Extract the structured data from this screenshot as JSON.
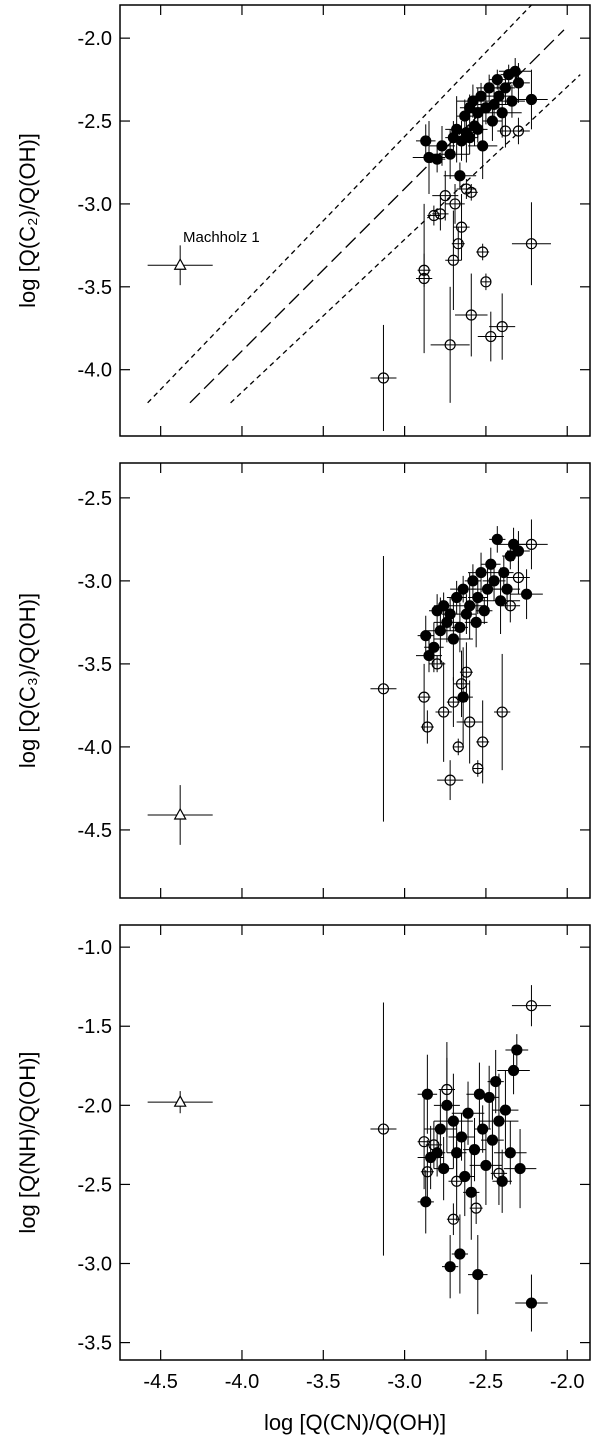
{
  "chart_data": [
    {
      "type": "scatter",
      "y_label": "log [Q(C₂)/Q(OH)]",
      "annotation": "Machholz 1",
      "xlim": [
        -4.75,
        -1.86
      ],
      "ylim": [
        -4.4,
        -1.8
      ],
      "xticks": [
        -4.5,
        -4,
        -3.5,
        -3,
        -2.5,
        -2
      ],
      "show_xtick_labels": false,
      "yticks": [
        {
          "value": -2,
          "label": "-2.0"
        },
        -2.5,
        {
          "value": -3,
          "label": "-3.0"
        },
        -3.5,
        {
          "value": -4,
          "label": "-4.0"
        }
      ],
      "reference_lines": [
        {
          "style": "short",
          "x": [
            -4.58,
            -2.22
          ],
          "values": [
            -4.2,
            -1.8
          ]
        },
        {
          "style": "long",
          "x": [
            -4.32,
            -2.02
          ],
          "values": [
            -4.2,
            -1.95
          ]
        },
        {
          "style": "short",
          "x": [
            -4.07,
            -1.92
          ],
          "values": [
            -4.2,
            -2.22
          ]
        }
      ],
      "series": [
        {
          "marker": "filled",
          "color": "#000000",
          "x": [
            -2.87,
            -2.85,
            -2.8,
            -2.77,
            -2.72,
            -2.7,
            -2.68,
            -2.66,
            -2.65,
            -2.63,
            -2.62,
            -2.6,
            -2.58,
            -2.57,
            -2.55,
            -2.53,
            -2.52,
            -2.5,
            -2.48,
            -2.46,
            -2.45,
            -2.43,
            -2.42,
            -2.4,
            -2.38,
            -2.36,
            -2.34,
            -2.32,
            -2.3,
            -2.22,
            -2.6,
            -2.55
          ],
          "values": [
            -2.62,
            -2.72,
            -2.73,
            -2.65,
            -2.7,
            -2.6,
            -2.55,
            -2.83,
            -2.62,
            -2.47,
            -2.57,
            -2.42,
            -2.38,
            -2.53,
            -2.45,
            -2.35,
            -2.65,
            -2.42,
            -2.3,
            -2.5,
            -2.4,
            -2.25,
            -2.35,
            -2.45,
            -2.3,
            -2.22,
            -2.38,
            -2.2,
            -2.27,
            -2.37,
            -2.6,
            -2.55
          ],
          "xerr": [
            0.06,
            0.1,
            0.05,
            0.08,
            0.12,
            0.05,
            0.07,
            0.1,
            0.06,
            0.05,
            0.08,
            0.06,
            0.1,
            0.05,
            0.07,
            0.06,
            0.09,
            0.05,
            0.08,
            0.06,
            0.1,
            0.05,
            0.07,
            0.12,
            0.06,
            0.05,
            0.08,
            0.1,
            0.07,
            0.1,
            0.05,
            0.06
          ],
          "yerr": [
            0.1,
            0.22,
            0.08,
            0.12,
            0.15,
            0.1,
            0.2,
            0.08,
            0.12,
            0.1,
            0.18,
            0.08,
            0.1,
            0.12,
            0.15,
            0.08,
            0.2,
            0.1,
            0.08,
            0.12,
            0.1,
            0.06,
            0.12,
            0.15,
            0.1,
            0.06,
            0.1,
            0.08,
            0.12,
            0.18,
            0.1,
            0.08
          ]
        },
        {
          "marker": "open",
          "color": "#000000",
          "x": [
            -2.88,
            -2.88,
            -2.82,
            -2.78,
            -2.75,
            -2.72,
            -2.7,
            -2.69,
            -2.67,
            -2.65,
            -2.62,
            -2.59,
            -2.59,
            -2.52,
            -2.5,
            -2.47,
            -2.4,
            -2.38,
            -2.3,
            -2.22,
            -3.13
          ],
          "values": [
            -3.4,
            -3.45,
            -3.07,
            -3.06,
            -2.95,
            -3.85,
            -3.34,
            -3,
            -3.24,
            -3.14,
            -2.91,
            -2.93,
            -3.67,
            -3.29,
            -3.47,
            -3.8,
            -3.74,
            -2.56,
            -2.56,
            -3.24,
            -4.05
          ],
          "xerr": [
            0.04,
            0.05,
            0.04,
            0.05,
            0.08,
            0.12,
            0.05,
            0.06,
            0.04,
            0.05,
            0.06,
            0.04,
            0.1,
            0.04,
            0.03,
            0.08,
            0.08,
            0.05,
            0.07,
            0.12,
            0.08
          ],
          "yerr": [
            0.1,
            0.45,
            0.06,
            0.1,
            0.15,
            0.35,
            0.3,
            0.12,
            0.1,
            0.2,
            0.06,
            0.05,
            0.25,
            0.05,
            0.05,
            0.15,
            0.2,
            0.1,
            0.08,
            0.25,
            0.32
          ]
        },
        {
          "marker": "triangle",
          "color": "#000000",
          "x": [
            -4.38
          ],
          "values": [
            -3.37
          ],
          "xerr": [
            0.2
          ],
          "yerr": [
            0.12
          ]
        }
      ]
    },
    {
      "type": "scatter",
      "y_label": "log [Q(C₃)/Q(OH)]",
      "xlim": [
        -4.75,
        -1.86
      ],
      "ylim": [
        -4.91,
        -2.29
      ],
      "xticks": [
        -4.5,
        -4,
        -3.5,
        -3,
        -2.5,
        -2
      ],
      "show_xtick_labels": false,
      "yticks": [
        -2.5,
        {
          "value": -3,
          "label": "-3.0"
        },
        -3.5,
        {
          "value": -4,
          "label": "-4.0"
        },
        -4.5
      ],
      "series": [
        {
          "marker": "filled",
          "color": "#000000",
          "x": [
            -2.87,
            -2.85,
            -2.82,
            -2.8,
            -2.78,
            -2.76,
            -2.74,
            -2.72,
            -2.7,
            -2.68,
            -2.66,
            -2.64,
            -2.62,
            -2.6,
            -2.58,
            -2.56,
            -2.55,
            -2.53,
            -2.51,
            -2.49,
            -2.47,
            -2.45,
            -2.43,
            -2.41,
            -2.39,
            -2.37,
            -2.35,
            -2.33,
            -2.3,
            -2.25,
            -2.64
          ],
          "values": [
            -3.33,
            -3.45,
            -3.4,
            -3.18,
            -3.3,
            -3.15,
            -3.25,
            -3.2,
            -3.35,
            -3.1,
            -3.28,
            -3.05,
            -3.2,
            -3.15,
            -3,
            -3.25,
            -3.1,
            -2.95,
            -3.18,
            -3.05,
            -2.9,
            -3,
            -2.75,
            -3.12,
            -2.95,
            -3.05,
            -2.85,
            -2.78,
            -2.82,
            -3.08,
            -3.7
          ],
          "xerr": [
            0.05,
            0.08,
            0.06,
            0.05,
            0.1,
            0.06,
            0.08,
            0.05,
            0.12,
            0.06,
            0.05,
            0.08,
            0.06,
            0.1,
            0.05,
            0.07,
            0.06,
            0.08,
            0.05,
            0.1,
            0.06,
            0.07,
            0.05,
            0.12,
            0.06,
            0.08,
            0.05,
            0.1,
            0.07,
            0.1,
            0.06
          ],
          "yerr": [
            0.12,
            0.1,
            0.15,
            0.1,
            0.2,
            0.08,
            0.12,
            0.1,
            0.25,
            0.1,
            0.15,
            0.08,
            0.12,
            0.2,
            0.1,
            0.15,
            0.1,
            0.12,
            0.08,
            0.15,
            0.1,
            0.12,
            0.08,
            0.2,
            0.1,
            0.12,
            0.08,
            0.1,
            0.12,
            0.15,
            0.3
          ]
        },
        {
          "marker": "open",
          "color": "#000000",
          "x": [
            -2.88,
            -2.86,
            -2.8,
            -2.76,
            -2.72,
            -2.7,
            -2.67,
            -2.65,
            -2.62,
            -2.6,
            -2.55,
            -2.52,
            -2.4,
            -2.35,
            -2.22,
            -3.13,
            -2.3
          ],
          "values": [
            -3.7,
            -3.88,
            -3.5,
            -3.79,
            -4.2,
            -3.73,
            -4,
            -3.62,
            -3.55,
            -3.85,
            -4.13,
            -3.97,
            -3.79,
            -3.15,
            -2.78,
            -3.65,
            -2.98
          ],
          "xerr": [
            0.04,
            0.04,
            0.05,
            0.05,
            0.08,
            0.04,
            0.03,
            0.05,
            0.04,
            0.08,
            0.03,
            0.04,
            0.05,
            0.06,
            0.1,
            0.08,
            0.07
          ],
          "yerr": [
            0.2,
            0.1,
            0.05,
            0.3,
            0.12,
            0.15,
            0.05,
            0.2,
            0.18,
            0.25,
            0.05,
            0.25,
            0.35,
            0.1,
            0.15,
            0.8,
            0.1
          ]
        },
        {
          "marker": "triangle",
          "color": "#000000",
          "x": [
            -4.38
          ],
          "values": [
            -4.41
          ],
          "xerr": [
            0.2
          ],
          "yerr": [
            0.18
          ]
        }
      ]
    },
    {
      "type": "scatter",
      "y_label": "log [Q(NH)/Q(OH)]",
      "x_label": "log [Q(CN)/Q(OH)]",
      "xlim": [
        -4.75,
        -1.86
      ],
      "ylim": [
        -3.61,
        -0.86
      ],
      "xticks": [
        -4.5,
        {
          "value": -4,
          "label": "-4.0"
        },
        -3.5,
        {
          "value": -3,
          "label": "-3.0"
        },
        -2.5,
        {
          "value": -2,
          "label": "-2.0"
        }
      ],
      "show_xtick_labels": true,
      "yticks": [
        {
          "value": -1,
          "label": "-1.0"
        },
        -1.5,
        {
          "value": -2,
          "label": "-2.0"
        },
        -2.5,
        {
          "value": -3,
          "label": "-3.0"
        },
        -3.5
      ],
      "series": [
        {
          "marker": "filled",
          "color": "#000000",
          "x": [
            -2.87,
            -2.86,
            -2.84,
            -2.8,
            -2.78,
            -2.76,
            -2.74,
            -2.72,
            -2.7,
            -2.68,
            -2.66,
            -2.65,
            -2.63,
            -2.61,
            -2.59,
            -2.57,
            -2.55,
            -2.54,
            -2.52,
            -2.5,
            -2.48,
            -2.46,
            -2.44,
            -2.42,
            -2.4,
            -2.38,
            -2.35,
            -2.33,
            -2.31,
            -2.29,
            -2.22
          ],
          "values": [
            -2.61,
            -1.93,
            -2.33,
            -2.3,
            -2.15,
            -2.4,
            -2,
            -3.02,
            -2.1,
            -2.3,
            -2.94,
            -2.2,
            -2.45,
            -2.05,
            -2.55,
            -2.28,
            -3.07,
            -1.93,
            -2.15,
            -2.38,
            -1.95,
            -2.22,
            -1.85,
            -2.1,
            -2.48,
            -2.03,
            -2.3,
            -1.78,
            -1.65,
            -2.4,
            -3.25
          ],
          "xerr": [
            0.05,
            0.06,
            0.08,
            0.05,
            0.1,
            0.06,
            0.08,
            0.05,
            0.12,
            0.06,
            0.05,
            0.08,
            0.06,
            0.1,
            0.05,
            0.07,
            0.06,
            0.08,
            0.05,
            0.1,
            0.06,
            0.07,
            0.05,
            0.12,
            0.06,
            0.08,
            0.1,
            0.1,
            0.07,
            0.1,
            0.1
          ],
          "yerr": [
            0.2,
            0.25,
            0.2,
            0.15,
            0.25,
            0.2,
            0.3,
            0.2,
            0.3,
            0.2,
            0.25,
            0.15,
            0.25,
            0.2,
            0.3,
            0.2,
            0.25,
            0.2,
            0.15,
            0.25,
            0.2,
            0.25,
            0.2,
            0.3,
            0.2,
            0.25,
            0.2,
            0.15,
            0.1,
            0.25,
            0.18
          ]
        },
        {
          "marker": "open",
          "color": "#000000",
          "x": [
            -2.88,
            -2.86,
            -2.82,
            -2.74,
            -2.7,
            -2.68,
            -2.56,
            -2.42,
            -3.13,
            -2.22
          ],
          "values": [
            -2.23,
            -2.42,
            -2.25,
            -1.9,
            -2.72,
            -2.48,
            -2.65,
            -2.43,
            -2.15,
            -1.37
          ],
          "xerr": [
            0.04,
            0.04,
            0.05,
            0.05,
            0.04,
            0.05,
            0.04,
            0.05,
            0.08,
            0.12
          ],
          "yerr": [
            0.3,
            0.2,
            0.15,
            0.3,
            0.1,
            0.25,
            0.1,
            0.2,
            0.8,
            0.13
          ]
        },
        {
          "marker": "triangle",
          "color": "#000000",
          "x": [
            -4.38
          ],
          "values": [
            -1.98
          ],
          "xerr": [
            0.2
          ],
          "yerr": [
            0.07
          ]
        }
      ]
    }
  ]
}
